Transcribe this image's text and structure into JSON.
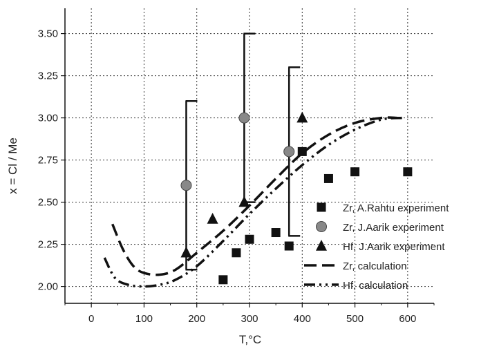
{
  "chart_data": {
    "type": "scatter",
    "xlabel": "T,°C",
    "ylabel": "x = Cl / Me",
    "xlim": [
      -50,
      650
    ],
    "ylim": [
      1.9,
      3.65
    ],
    "xticks": [
      0,
      100,
      200,
      300,
      400,
      500,
      600
    ],
    "yticks": [
      2.0,
      2.25,
      2.5,
      2.75,
      3.0,
      3.25,
      3.5
    ],
    "xtick_labels": [
      "0",
      "100",
      "200",
      "300",
      "400",
      "500",
      "600"
    ],
    "ytick_labels": [
      "2.00",
      "2.25",
      "2.50",
      "2.75",
      "3.00",
      "3.25",
      "3.50"
    ],
    "grid": true,
    "legend_position": "bottom-right",
    "series": [
      {
        "name": "Zr, A.Rahtu experiment",
        "marker": "square",
        "color": "#111111",
        "x": [
          250,
          275,
          300,
          350,
          375,
          400,
          450,
          500,
          600
        ],
        "y": [
          2.04,
          2.2,
          2.28,
          2.32,
          2.24,
          2.8,
          2.64,
          2.68,
          2.68
        ]
      },
      {
        "name": "Zr, J.Aarik experiment",
        "marker": "circle",
        "color": "#888888",
        "x": [
          180,
          290,
          375
        ],
        "y": [
          2.6,
          3.0,
          2.8
        ],
        "error_low": [
          2.1,
          2.5,
          2.3
        ],
        "error_high": [
          3.1,
          3.5,
          3.3
        ]
      },
      {
        "name": "Hf, J.Aarik experiment",
        "marker": "triangle",
        "color": "#111111",
        "x": [
          180,
          230,
          290,
          400
        ],
        "y": [
          2.2,
          2.4,
          2.5,
          3.0
        ]
      },
      {
        "name": "Zr, calculation",
        "line": "dash",
        "color": "#111111",
        "x": [
          40,
          60,
          80,
          100,
          130,
          160,
          200,
          250,
          300,
          350,
          400,
          450,
          500,
          550,
          580
        ],
        "y": [
          2.37,
          2.22,
          2.12,
          2.08,
          2.07,
          2.1,
          2.2,
          2.33,
          2.48,
          2.64,
          2.79,
          2.9,
          2.97,
          3.0,
          3.0
        ]
      },
      {
        "name": "Hf, calculation",
        "line": "dashdot",
        "color": "#111111",
        "x": [
          25,
          45,
          70,
          100,
          130,
          160,
          200,
          250,
          300,
          350,
          400,
          450,
          500,
          550,
          590
        ],
        "y": [
          2.17,
          2.05,
          2.01,
          2.0,
          2.01,
          2.04,
          2.12,
          2.27,
          2.43,
          2.58,
          2.72,
          2.84,
          2.93,
          2.99,
          3.0
        ]
      }
    ]
  }
}
